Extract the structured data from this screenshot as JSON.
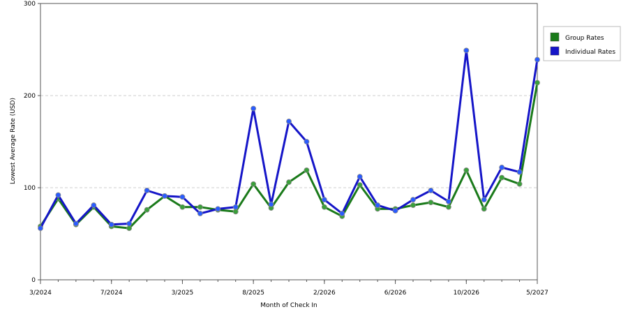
{
  "chart_data": {
    "type": "line",
    "title": "",
    "xlabel": "Month of Check In",
    "ylabel": "Lowest Average Rate (USD)",
    "ylim": [
      0,
      300
    ],
    "yticks": [
      0,
      100,
      200,
      300
    ],
    "x_tick_labels": [
      {
        "index": 0,
        "label": "3/2024"
      },
      {
        "index": 4,
        "label": "7/2024"
      },
      {
        "index": 8,
        "label": "3/2025"
      },
      {
        "index": 12,
        "label": "8/2025"
      },
      {
        "index": 16,
        "label": "2/2026"
      },
      {
        "index": 20,
        "label": "6/2026"
      },
      {
        "index": 24,
        "label": "10/2026"
      },
      {
        "index": 28,
        "label": "5/2027"
      }
    ],
    "point_count": 29,
    "grid": {
      "horizontal": true,
      "style": "dashed"
    },
    "legend_position": "top-right",
    "series": [
      {
        "name": "Group Rates",
        "color": "#1a7a1a",
        "marker_color": "#3aa03a",
        "values": [
          58,
          88,
          60,
          79,
          58,
          56,
          76,
          91,
          79,
          79,
          76,
          74,
          104,
          78,
          106,
          119,
          79,
          69,
          103,
          77,
          77,
          81,
          84,
          79,
          119,
          77,
          111,
          104,
          214
        ]
      },
      {
        "name": "Individual Rates",
        "color": "#1515c8",
        "marker_color": "#2a5cff",
        "values": [
          56,
          92,
          61,
          81,
          60,
          61,
          97,
          91,
          90,
          72,
          77,
          79,
          186,
          82,
          172,
          150,
          87,
          72,
          112,
          81,
          75,
          87,
          97,
          85,
          249,
          87,
          122,
          117,
          239
        ]
      }
    ]
  }
}
